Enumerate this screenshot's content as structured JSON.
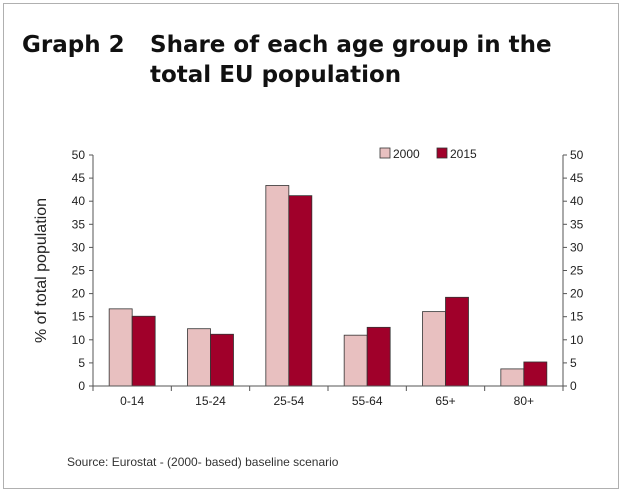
{
  "title": {
    "label": "Graph 2",
    "line1": "Share of each age group in the",
    "line2": "total EU population"
  },
  "source": "Source: Eurostat - (2000- based) baseline scenario",
  "chart_data": {
    "type": "bar",
    "categories": [
      "0-14",
      "15-24",
      "25-54",
      "55-64",
      "65+",
      "80+"
    ],
    "series": [
      {
        "name": "2000",
        "values": [
          16.7,
          12.4,
          43.4,
          11.0,
          16.1,
          3.7
        ],
        "color": "#e8c0c0"
      },
      {
        "name": "2015",
        "values": [
          15.1,
          11.2,
          41.2,
          12.7,
          19.2,
          5.2
        ],
        "color": "#a0002a"
      }
    ],
    "ylabel": "% of total population",
    "ylim": [
      0,
      50
    ],
    "yticks": [
      0,
      5,
      10,
      15,
      20,
      25,
      30,
      35,
      40,
      45,
      50
    ],
    "secondary_axis": true,
    "grid": false,
    "legend_position": "top-right"
  }
}
